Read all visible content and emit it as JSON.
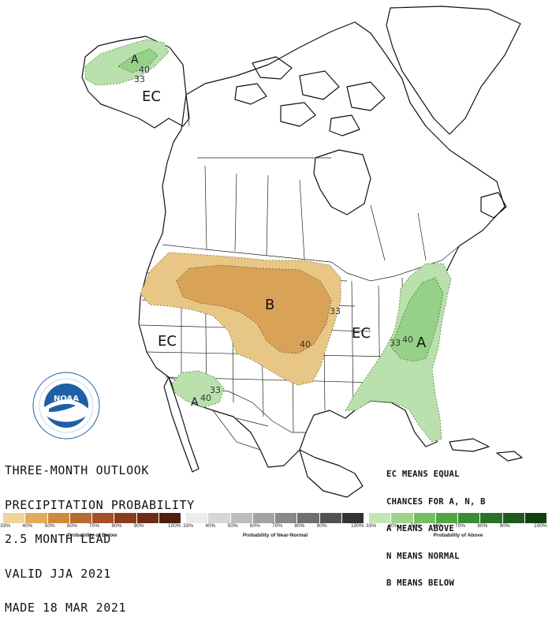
{
  "title_lines": [
    "THREE-MONTH OUTLOOK",
    "PRECIPITATION PROBABILITY",
    "2.5 MONTH LEAD",
    "VALID JJA 2021",
    "MADE 18 MAR 2021"
  ],
  "legend_note_lines": [
    "EC MEANS EQUAL",
    "CHANCES FOR A, N, B",
    "A MEANS ABOVE",
    "N MEANS NORMAL",
    "B MEANS BELOW"
  ],
  "map_labels": {
    "ec_alaska": "EC",
    "ec_west": "EC",
    "ec_midwest": "EC",
    "below_plains": "B",
    "above_east": "A",
    "above_alaska": "A",
    "above_southwest": "A"
  },
  "contour_labels": {
    "alaska_40": "40",
    "alaska_33": "33",
    "plains_33": "33",
    "plains_40": "40",
    "east_33": "33",
    "east_40": "40",
    "sw_33": "33",
    "sw_40": "40"
  },
  "colorbars": [
    {
      "name": "Probability of Below",
      "ticks": [
        "33%",
        "40%",
        "50%",
        "60%",
        "70%",
        "80%",
        "90%",
        "100%"
      ],
      "colors": [
        "#f0d49a",
        "#e0ac5a",
        "#cf8a3c",
        "#b86a30",
        "#a35028",
        "#8a3c1e",
        "#6e2c14",
        "#4f1e0e"
      ]
    },
    {
      "name": "Probability of Near-Normal",
      "ticks": [
        "33%",
        "40%",
        "50%",
        "60%",
        "70%",
        "80%",
        "90%",
        "100%"
      ],
      "colors": [
        "#ececec",
        "#d6d6d6",
        "#bdbdbd",
        "#a3a3a3",
        "#888888",
        "#6e6e6e",
        "#525252",
        "#333333"
      ]
    },
    {
      "name": "Probability of Above",
      "ticks": [
        "33%",
        "40%",
        "50%",
        "60%",
        "70%",
        "80%",
        "90%",
        "100%"
      ],
      "colors": [
        "#c4e6b4",
        "#9ed48a",
        "#74bf62",
        "#4ea642",
        "#3a8c34",
        "#2a7228",
        "#1e5a1e",
        "#124012"
      ]
    }
  ],
  "colors": {
    "below_33": "#e8c786",
    "below_40": "#d9a357",
    "above_33": "#b9e0ad",
    "above_40": "#97d088",
    "boundary": "#111111",
    "noaa_blue": "#1f5fa8"
  },
  "logo_text": "NOAA"
}
